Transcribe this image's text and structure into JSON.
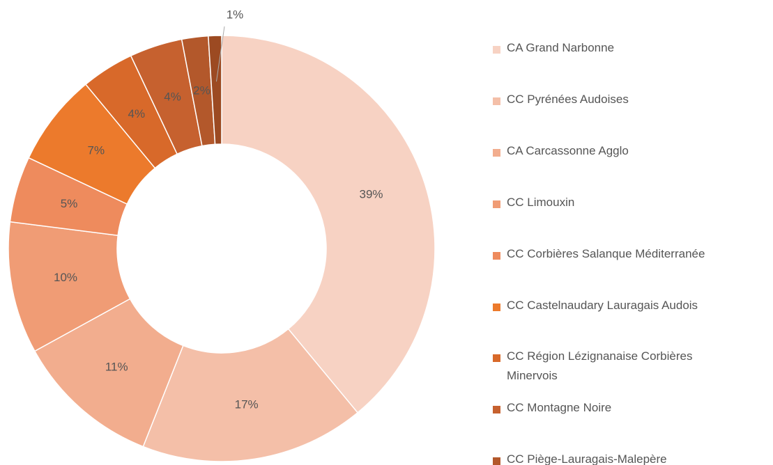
{
  "chart_data": {
    "type": "donut",
    "categories": [
      "CA Grand Narbonne",
      "CC Pyrénées Audoises",
      "CA Carcassonne Agglo",
      "CC Limouxin",
      "CC Corbières Salanque Méditerranée",
      "CC Castelnaudary Lauragais Audois",
      "CC Région Lézignanaise Corbières Minervois",
      "CC Montagne Noire",
      "CC Piège-Lauragais-Malepère",
      null
    ],
    "values": [
      39,
      17,
      11,
      10,
      5,
      7,
      4,
      4,
      2,
      1
    ],
    "value_labels": [
      "39%",
      "17%",
      "11%",
      "10%",
      "5%",
      "7%",
      "4%",
      "4%",
      "2%",
      "1%"
    ],
    "colors": [
      "#f7d2c3",
      "#f4bfa8",
      "#f2ad8e",
      "#f09c75",
      "#ee8b5d",
      "#ec7a2c",
      "#d8692a",
      "#c6612f",
      "#b3582b",
      "#9c4a22"
    ],
    "legend": "right"
  }
}
